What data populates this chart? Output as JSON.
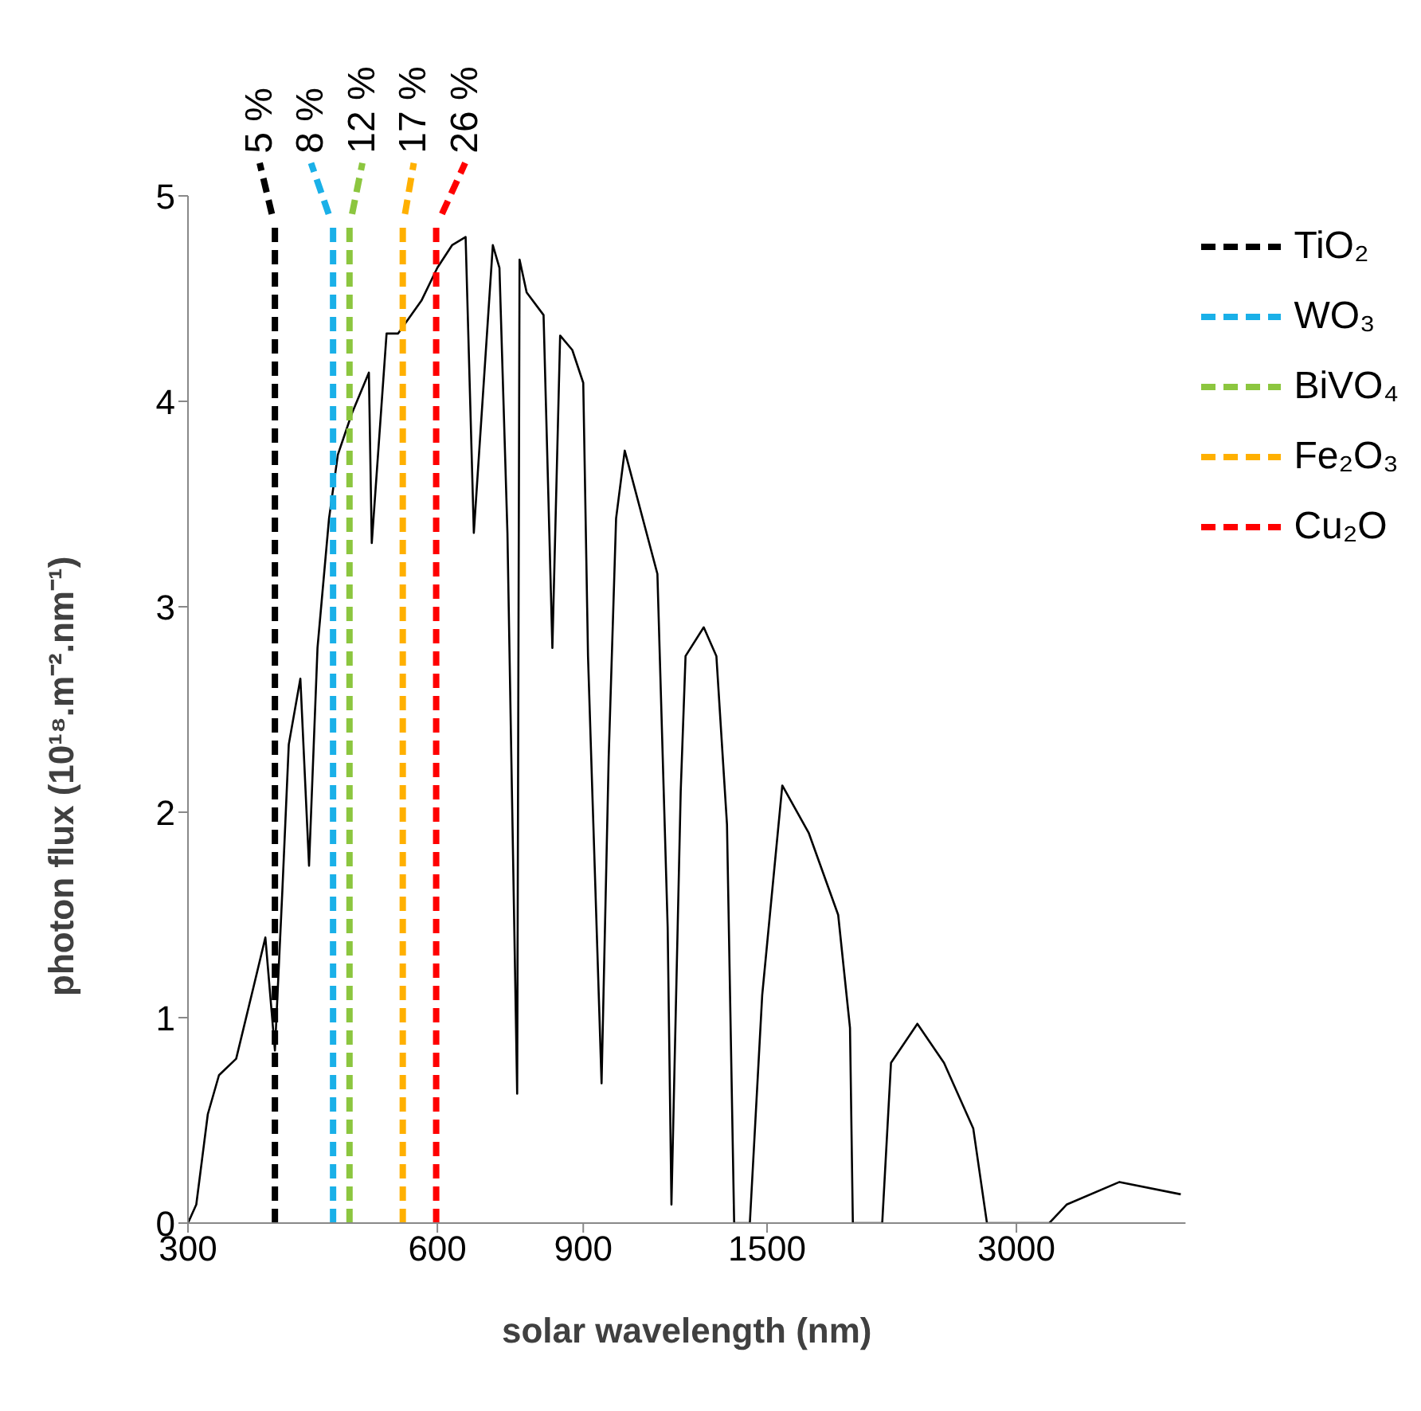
{
  "chart_data": {
    "type": "line",
    "xlabel": "solar wavelength (nm)",
    "ylabel": "photon flux (10¹⁸.m⁻².nm⁻¹)",
    "log": "x",
    "xlim": [
      300,
      4800
    ],
    "xticks": [
      300,
      600,
      900,
      1500,
      3000
    ],
    "ylim": [
      0,
      5
    ],
    "yticks": [
      0,
      1,
      2,
      3,
      4,
      5
    ],
    "legend": "top right",
    "marker": "none",
    "line_style": "solid",
    "series": [
      {
        "color": "#000000",
        "x": [
          300,
          307,
          317,
          327,
          343,
          360,
          372,
          382,
          390,
          397,
          410,
          420,
          430,
          444,
          455,
          473,
          496,
          500,
          521,
          538,
          574,
          600,
          625,
          649,
          664,
          700,
          713,
          729,
          749,
          754,
          769,
          806,
          826,
          844,
          873,
          900,
          912,
          947,
          966,
          986,
          1010,
          1106,
          1138,
          1150,
          1180,
          1196,
          1258,
          1303,
          1342,
          1369,
          1430,
          1480,
          1565,
          1684,
          1828,
          1889,
          1904,
          2066,
          2117,
          2278,
          2453,
          2661,
          2764,
          3287,
          3449,
          3995,
          4737
        ],
        "values": [
          0,
          0.09,
          0.53,
          0.72,
          0.8,
          1.15,
          1.39,
          0.84,
          1.62,
          2.33,
          2.65,
          1.74,
          2.8,
          3.43,
          3.74,
          3.94,
          4.14,
          3.31,
          4.33,
          4.33,
          4.49,
          4.65,
          4.76,
          4.8,
          3.36,
          4.76,
          4.65,
          3.36,
          0.63,
          4.69,
          4.53,
          4.42,
          2.8,
          4.32,
          4.25,
          4.09,
          2.76,
          0.68,
          2.27,
          3.43,
          3.76,
          3.16,
          1.44,
          0.09,
          2.1,
          2.76,
          2.9,
          2.76,
          1.94,
          0,
          0,
          1.11,
          2.13,
          1.9,
          1.5,
          0.95,
          0,
          0,
          0.78,
          0.97,
          0.78,
          0.46,
          0,
          0,
          0.09,
          0.2,
          0.14
        ]
      },
      {
        "name": "TiO₂",
        "color": "#000000",
        "line_style": "dashed",
        "x": [
          382,
          382
        ],
        "values": [
          0,
          4.85
        ]
      },
      {
        "name": "WO₃",
        "color": "#1ab0e8",
        "line_style": "dashed",
        "x": [
          449,
          449
        ],
        "values": [
          0,
          4.85
        ]
      },
      {
        "name": "BiVO₄",
        "color": "#8cc63f",
        "line_style": "dashed",
        "x": [
          470,
          470
        ],
        "values": [
          0,
          4.85
        ]
      },
      {
        "name": "Fe₂O₃",
        "color": "#ffb000",
        "line_style": "dashed",
        "x": [
          545,
          545
        ],
        "values": [
          0,
          4.85
        ]
      },
      {
        "name": "Cu₂O",
        "color": "#ff0000",
        "line_style": "dashed",
        "x": [
          598,
          598
        ],
        "values": [
          0,
          4.85
        ]
      }
    ],
    "annotations": [
      {
        "text": "5 %",
        "x": 382,
        "y": 4.85
      },
      {
        "text": "8 %",
        "x": 449,
        "y": 4.85
      },
      {
        "text": "12 %",
        "x": 470,
        "y": 4.85
      },
      {
        "text": "17 %",
        "x": 545,
        "y": 4.85
      },
      {
        "text": "26 %",
        "x": 598,
        "y": 4.85
      }
    ]
  }
}
